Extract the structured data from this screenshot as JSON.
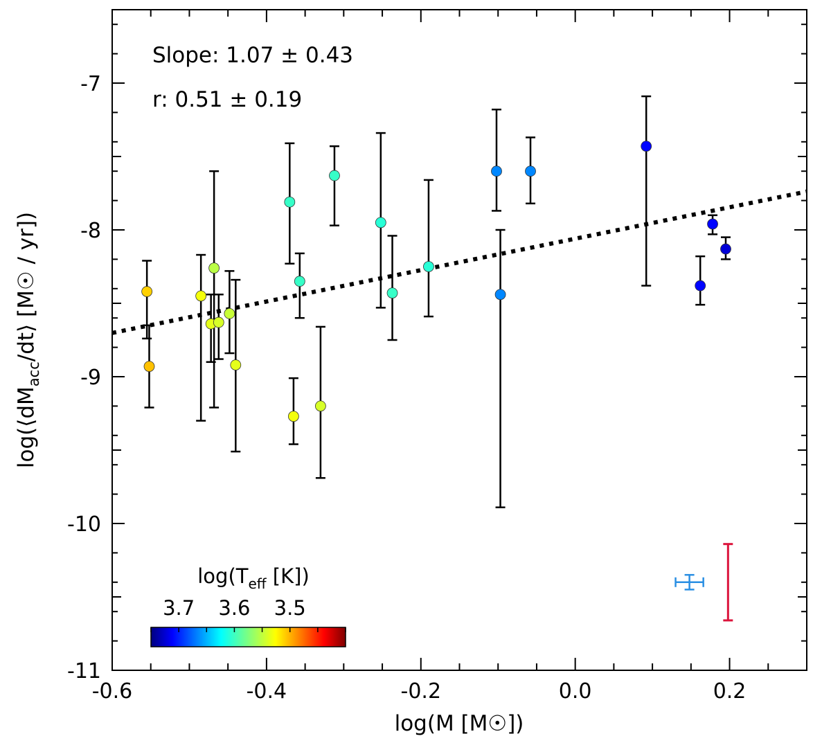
{
  "chart_data": {
    "type": "scatter",
    "xlabel": "log(M [M☉])",
    "ylabel": "log(⟨dM_acc/dt⟩ [M☉ / yr])",
    "xlim": [
      -0.6,
      0.3
    ],
    "ylim": [
      -11,
      -6.5
    ],
    "x_ticks": [
      -0.6,
      -0.4,
      -0.2,
      0.0,
      0.2
    ],
    "x_tick_labels": [
      "-0.6",
      "-0.4",
      "-0.2",
      "0.0",
      "0.2"
    ],
    "y_ticks": [
      -11,
      -10,
      -9,
      -8,
      -7
    ],
    "y_tick_labels": [
      "-11",
      "-10",
      "-9",
      "-8",
      "-7"
    ],
    "annotations": [
      {
        "text": "Slope: 1.07 ± 0.43"
      },
      {
        "text": "r: 0.51 ± 0.19"
      }
    ],
    "fit": {
      "slope": 1.07,
      "intercept": -8.06,
      "style": "dotted",
      "color": "#000000"
    },
    "colorbar": {
      "title": "log(T_eff [K])",
      "range": [
        3.75,
        3.4
      ],
      "ticks": [
        3.7,
        3.6,
        3.5
      ],
      "tick_labels": [
        "3.7",
        "3.6",
        "3.5"
      ],
      "colormap": "jet",
      "placement": "bottom-left"
    },
    "points": [
      {
        "x": -0.555,
        "y": -8.42,
        "yerr_low": 0.32,
        "yerr_high": 0.21,
        "teff": 3.515
      },
      {
        "x": -0.552,
        "y": -8.93,
        "yerr_low": 0.28,
        "yerr_high": 0.28,
        "teff": 3.51
      },
      {
        "x": -0.485,
        "y": -8.45,
        "yerr_low": 0.85,
        "yerr_high": 0.28,
        "teff": 3.535
      },
      {
        "x": -0.468,
        "y": -8.26,
        "yerr_low": 0.95,
        "yerr_high": 0.66,
        "teff": 3.555
      },
      {
        "x": -0.472,
        "y": -8.64,
        "yerr_low": 0.26,
        "yerr_high": 0.2,
        "teff": 3.54
      },
      {
        "x": -0.462,
        "y": -8.63,
        "yerr_low": 0.25,
        "yerr_high": 0.19,
        "teff": 3.545
      },
      {
        "x": -0.448,
        "y": -8.57,
        "yerr_low": 0.27,
        "yerr_high": 0.29,
        "teff": 3.55
      },
      {
        "x": -0.44,
        "y": -8.92,
        "yerr_low": 0.59,
        "yerr_high": 0.58,
        "teff": 3.54
      },
      {
        "x": -0.37,
        "y": -7.81,
        "yerr_low": 0.42,
        "yerr_high": 0.4,
        "teff": 3.6
      },
      {
        "x": -0.365,
        "y": -9.27,
        "yerr_low": 0.19,
        "yerr_high": 0.26,
        "teff": 3.535
      },
      {
        "x": -0.357,
        "y": -8.35,
        "yerr_low": 0.25,
        "yerr_high": 0.19,
        "teff": 3.6
      },
      {
        "x": -0.33,
        "y": -9.2,
        "yerr_low": 0.49,
        "yerr_high": 0.54,
        "teff": 3.545
      },
      {
        "x": -0.312,
        "y": -7.63,
        "yerr_low": 0.34,
        "yerr_high": 0.2,
        "teff": 3.6
      },
      {
        "x": -0.252,
        "y": -7.95,
        "yerr_low": 0.58,
        "yerr_high": 0.61,
        "teff": 3.605
      },
      {
        "x": -0.237,
        "y": -8.43,
        "yerr_low": 0.32,
        "yerr_high": 0.39,
        "teff": 3.6
      },
      {
        "x": -0.19,
        "y": -8.25,
        "yerr_low": 0.34,
        "yerr_high": 0.59,
        "teff": 3.605
      },
      {
        "x": -0.102,
        "y": -7.6,
        "yerr_low": 0.27,
        "yerr_high": 0.42,
        "teff": 3.66
      },
      {
        "x": -0.097,
        "y": -8.44,
        "yerr_low": 1.45,
        "yerr_high": 0.44,
        "teff": 3.66
      },
      {
        "x": -0.058,
        "y": -7.6,
        "yerr_low": 0.22,
        "yerr_high": 0.23,
        "teff": 3.66
      },
      {
        "x": 0.092,
        "y": -7.43,
        "yerr_low": 0.95,
        "yerr_high": 0.34,
        "teff": 3.705
      },
      {
        "x": 0.162,
        "y": -8.38,
        "yerr_low": 0.13,
        "yerr_high": 0.2,
        "teff": 3.705
      },
      {
        "x": 0.178,
        "y": -7.96,
        "yerr_low": 0.07,
        "yerr_high": 0.06,
        "teff": 3.705
      },
      {
        "x": 0.195,
        "y": -8.13,
        "yerr_low": 0.07,
        "yerr_high": 0.08,
        "teff": 3.72
      }
    ],
    "typical_error_bars": [
      {
        "x": 0.148,
        "y": -10.4,
        "xerr": 0.018,
        "yerr": 0.05,
        "color": "#2a8fe3"
      },
      {
        "x": 0.198,
        "y": -10.4,
        "yerr_low": 0.26,
        "yerr_high": 0.26,
        "color": "#dc143c"
      }
    ]
  }
}
